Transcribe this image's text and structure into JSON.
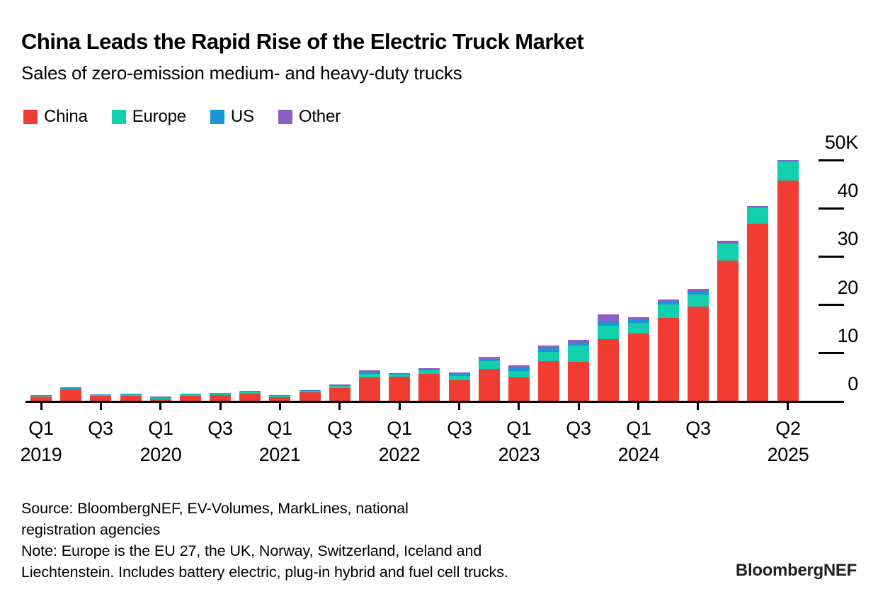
{
  "header": {
    "title": "China Leads the Rapid Rise of the Electric Truck Market",
    "subtitle": "Sales of zero-emission medium- and heavy-duty trucks"
  },
  "legend": [
    {
      "label": "China",
      "color": "#F03C32"
    },
    {
      "label": "Europe",
      "color": "#12CFAE"
    },
    {
      "label": "US",
      "color": "#1896D6"
    },
    {
      "label": "Other",
      "color": "#8C5FC4"
    }
  ],
  "chart_data": {
    "type": "bar",
    "stacked": true,
    "title": "Sales of zero-emission medium- and heavy-duty trucks",
    "unit": "thousand trucks per quarter",
    "ylim": [
      0,
      50
    ],
    "grid": false,
    "legend_position": "top-left",
    "y_axis_side": "right",
    "categories": [
      "Q1 2019",
      "Q2 2019",
      "Q3 2019",
      "Q4 2019",
      "Q1 2020",
      "Q2 2020",
      "Q3 2020",
      "Q4 2020",
      "Q1 2021",
      "Q2 2021",
      "Q3 2021",
      "Q4 2021",
      "Q1 2022",
      "Q2 2022",
      "Q3 2022",
      "Q4 2022",
      "Q1 2023",
      "Q2 2023",
      "Q3 2023",
      "Q4 2023",
      "Q1 2024",
      "Q2 2024",
      "Q3 2024",
      "Q4 2024",
      "Q1 2025",
      "Q2 2025"
    ],
    "series": [
      {
        "name": "China",
        "color": "#F03C32",
        "values": [
          0.9,
          2.4,
          1.0,
          1.1,
          0.35,
          1.1,
          1.2,
          1.45,
          0.8,
          1.7,
          2.7,
          4.8,
          5.0,
          5.65,
          4.3,
          6.65,
          4.9,
          8.2,
          8.1,
          12.7,
          14.0,
          17.2,
          19.5,
          29.0,
          36.6,
          45.6
        ]
      },
      {
        "name": "Europe",
        "color": "#12CFAE",
        "values": [
          0.08,
          0.12,
          0.25,
          0.3,
          0.2,
          0.2,
          0.25,
          0.5,
          0.22,
          0.3,
          0.35,
          0.75,
          0.4,
          0.65,
          0.8,
          1.5,
          1.2,
          2.0,
          3.4,
          2.9,
          2.1,
          2.7,
          2.5,
          3.5,
          3.5,
          4.0
        ]
      },
      {
        "name": "US",
        "color": "#1896D6",
        "values": [
          0.02,
          0.05,
          0.02,
          0.02,
          0.05,
          0.02,
          0.02,
          0.02,
          0.03,
          0.03,
          0.05,
          0.4,
          0.25,
          0.3,
          0.45,
          0.5,
          0.6,
          0.7,
          0.6,
          0.75,
          0.7,
          0.6,
          0.7,
          0.25,
          0.15,
          0.1
        ]
      },
      {
        "name": "Other",
        "color": "#8C5FC4",
        "values": [
          0,
          0.03,
          0,
          0,
          0.02,
          0,
          0,
          0,
          0,
          0,
          0.02,
          0.35,
          0.05,
          0.05,
          0.25,
          0.5,
          0.6,
          0.6,
          0.5,
          1.5,
          0.5,
          0.5,
          0.5,
          0.35,
          0.15,
          0.05
        ]
      }
    ],
    "y_ticks": [
      {
        "value": 0,
        "label": "0"
      },
      {
        "value": 10,
        "label": "10"
      },
      {
        "value": 20,
        "label": "20"
      },
      {
        "value": 30,
        "label": "30"
      },
      {
        "value": 40,
        "label": "40"
      },
      {
        "value": 50,
        "label": "50K"
      }
    ],
    "x_ticks": [
      {
        "index": 0,
        "q": "Q1",
        "year": "2019"
      },
      {
        "index": 2,
        "q": "Q3"
      },
      {
        "index": 4,
        "q": "Q1",
        "year": "2020"
      },
      {
        "index": 6,
        "q": "Q3"
      },
      {
        "index": 8,
        "q": "Q1",
        "year": "2021"
      },
      {
        "index": 10,
        "q": "Q3"
      },
      {
        "index": 12,
        "q": "Q1",
        "year": "2022"
      },
      {
        "index": 14,
        "q": "Q3"
      },
      {
        "index": 16,
        "q": "Q1",
        "year": "2023"
      },
      {
        "index": 18,
        "q": "Q3"
      },
      {
        "index": 20,
        "q": "Q1",
        "year": "2024"
      },
      {
        "index": 22,
        "q": "Q3"
      },
      {
        "index": 25,
        "q": "Q2",
        "year": "2025"
      }
    ]
  },
  "footer": {
    "source_lines": [
      "Source: BloombergNEF, EV-Volumes, MarkLines, national",
      "registration agencies"
    ],
    "note_lines": [
      "Note: Europe is the EU 27, the UK, Norway, Switzerland, Iceland and",
      "Liechtenstein. Includes battery electric, plug-in hybrid and fuel cell trucks."
    ],
    "brand": "BloombergNEF"
  }
}
